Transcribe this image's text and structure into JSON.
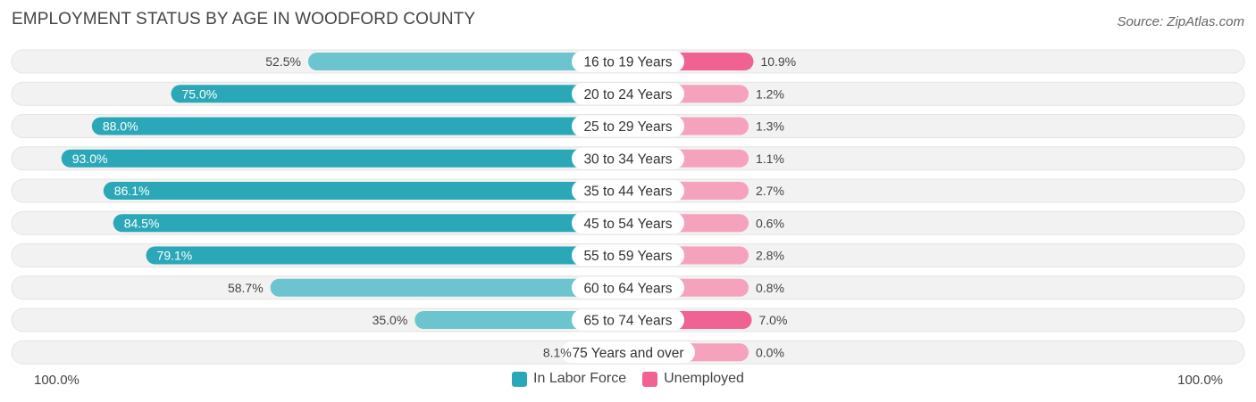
{
  "header": {
    "title": "EMPLOYMENT STATUS BY AGE IN WOODFORD COUNTY",
    "source": "Source: ZipAtlas.com"
  },
  "axis": {
    "left_label": "100.0%",
    "right_label": "100.0%"
  },
  "colors": {
    "labor_strong": "#2ba8b8",
    "labor_light": "#6cc4cf",
    "unemp_strong": "#f06292",
    "unemp_light": "#f5a3bd",
    "row_bg": "#f2f2f2"
  },
  "legend": {
    "labor_label": "In Labor Force",
    "unemp_label": "Unemployed"
  },
  "chart_data": {
    "type": "bar",
    "orientation": "diverging-horizontal",
    "title": "EMPLOYMENT STATUS BY AGE IN WOODFORD COUNTY",
    "categories": [
      "16 to 19 Years",
      "20 to 24 Years",
      "25 to 29 Years",
      "30 to 34 Years",
      "35 to 44 Years",
      "45 to 54 Years",
      "55 to 59 Years",
      "60 to 64 Years",
      "65 to 74 Years",
      "75 Years and over"
    ],
    "series": [
      {
        "name": "In Labor Force",
        "values": [
          52.5,
          75.0,
          88.0,
          93.0,
          86.1,
          84.5,
          79.1,
          58.7,
          35.0,
          8.1
        ],
        "labels": [
          "52.5%",
          "75.0%",
          "88.0%",
          "93.0%",
          "86.1%",
          "84.5%",
          "79.1%",
          "58.7%",
          "35.0%",
          "8.1%"
        ]
      },
      {
        "name": "Unemployed",
        "values": [
          10.9,
          1.2,
          1.3,
          1.1,
          2.7,
          0.6,
          2.8,
          0.8,
          7.0,
          0.0
        ],
        "labels": [
          "10.9%",
          "1.2%",
          "1.3%",
          "1.1%",
          "2.7%",
          "0.6%",
          "2.8%",
          "0.8%",
          "7.0%",
          "0.0%"
        ]
      }
    ],
    "xlim": [
      -100,
      100
    ],
    "legend_position": "bottom-center"
  }
}
